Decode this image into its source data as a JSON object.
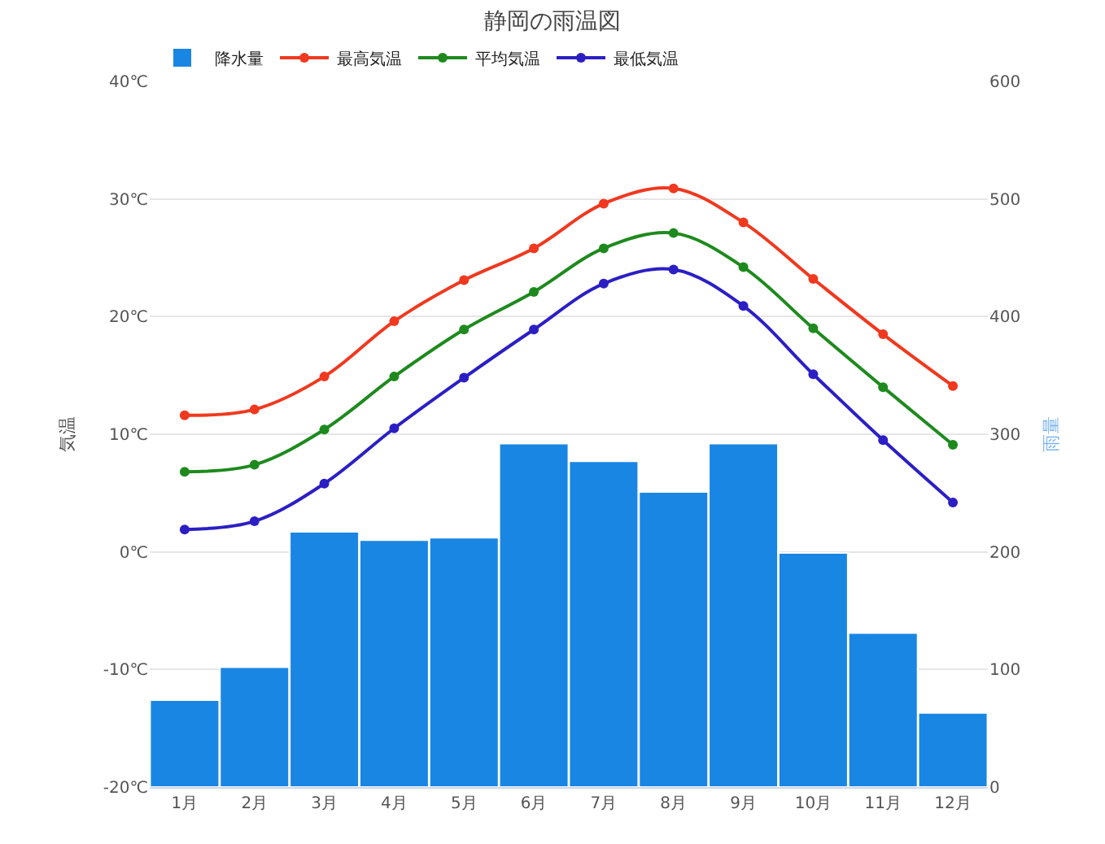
{
  "chart_data": {
    "type": "line",
    "title": "静岡の雨温図",
    "categories": [
      "1月",
      "2月",
      "3月",
      "4月",
      "5月",
      "6月",
      "7月",
      "8月",
      "9月",
      "10月",
      "11月",
      "12月"
    ],
    "series": [
      {
        "name": "最高気温",
        "color": "#f0391f",
        "values": [
          11.6,
          12.1,
          14.9,
          19.6,
          23.1,
          25.8,
          29.6,
          30.9,
          28.0,
          23.2,
          18.5,
          14.1
        ]
      },
      {
        "name": "平均気温",
        "color": "#1e8a1e",
        "values": [
          6.8,
          7.4,
          10.4,
          14.9,
          18.9,
          22.1,
          25.8,
          27.1,
          24.2,
          19.0,
          14.0,
          9.1
        ]
      },
      {
        "name": "最低気温",
        "color": "#2b1fc4",
        "values": [
          1.9,
          2.6,
          5.8,
          10.5,
          14.8,
          18.9,
          22.8,
          24.0,
          20.9,
          15.1,
          9.5,
          4.2
        ]
      },
      {
        "name": "降水量",
        "type": "bar",
        "axis": "y2",
        "color": "#1a86e3",
        "values": [
          74,
          102,
          217,
          210,
          212,
          292,
          277,
          251,
          292,
          199,
          131,
          63
        ]
      }
    ],
    "ylabel": "気温",
    "y2label": "雨量",
    "ylim": [
      -20,
      40
    ],
    "yticks": [
      {
        "value": -20,
        "label": "-20℃"
      },
      {
        "value": -10,
        "label": "-10℃"
      },
      {
        "value": 0,
        "label": "0℃"
      },
      {
        "value": 10,
        "label": "10℃"
      },
      {
        "value": 20,
        "label": "20℃"
      },
      {
        "value": 30,
        "label": "30℃"
      },
      {
        "value": 40,
        "label": "40℃"
      }
    ],
    "y2lim": [
      0,
      600
    ],
    "y2ticks": [
      0,
      100,
      200,
      300,
      400,
      500,
      600
    ],
    "grid": "y",
    "legend": "top left",
    "marker": "circle",
    "line_style": "solid"
  }
}
